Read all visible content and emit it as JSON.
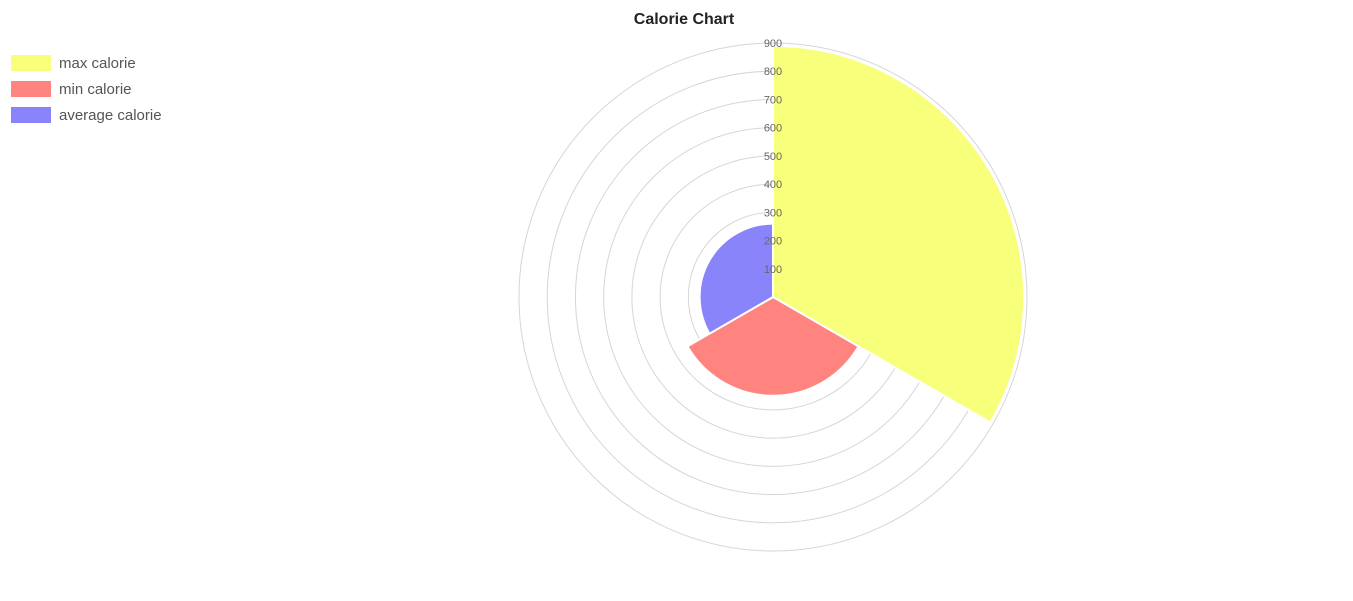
{
  "chart_data": {
    "type": "polarArea",
    "title": "Calorie Chart",
    "categories": [
      "max calorie",
      "min calorie",
      "average calorie"
    ],
    "values": [
      890,
      350,
      260
    ],
    "colors": [
      "#f8ff7a",
      "#ff8480",
      "#8a84fb"
    ],
    "rlim": [
      0,
      900
    ],
    "ticks": [
      100,
      200,
      300,
      400,
      500,
      600,
      700,
      800,
      900
    ],
    "grid": true,
    "legend_position": "top-left"
  }
}
